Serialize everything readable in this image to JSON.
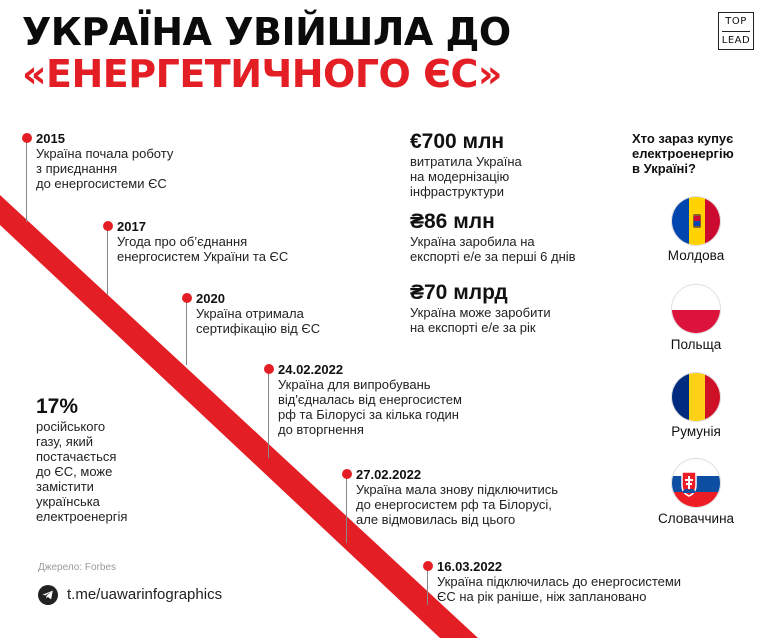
{
  "title": {
    "line1": "УКРАЇНА УВІЙШЛА ДО",
    "line2": "«ЕНЕРГЕТИЧНОГО ЄС»"
  },
  "logo": {
    "top": "TOP",
    "bottom": "LEAD"
  },
  "accent_color": "#e31e24",
  "timeline": [
    {
      "date": "2015",
      "text": "Україна почала роботу\nз приєднання\nдо енергосистеми ЄС"
    },
    {
      "date": "2017",
      "text": "Угода про об’єднання\nенергосистем України та ЄС"
    },
    {
      "date": "2020",
      "text": "Україна отримала\nсертифікацію від ЄС"
    },
    {
      "date": "24.02.2022",
      "text": "Україна для випробувань\nвід'єдналась від енергосистем\nрф та Білорусі за кілька годин\nдо вторгнення"
    },
    {
      "date": "27.02.2022",
      "text": "Україна мала знову підключитись\nдо енергосистем рф та Білорусі,\nале відмовилась від цього"
    },
    {
      "date": "16.03.2022",
      "text": "Україна підключилась до енергосистеми\nЄС на рік раніше, ніж заплановано"
    }
  ],
  "stats": [
    {
      "value": "€700 млн",
      "text": "витратила Україна\nна модернізацію\nінфраструктури"
    },
    {
      "value": "₴86 млн",
      "text": "Україна заробила на\nекспорті е/е за перші 6 днів"
    },
    {
      "value": "₴70 млрд",
      "text": "Україна може заробити\nна експорті е/е за рік"
    }
  ],
  "buyers": {
    "question": "Хто зараз купує\nелектроенергію\nв Україні?",
    "countries": [
      {
        "name": "Молдова",
        "flag": "moldova-flag-icon"
      },
      {
        "name": "Польща",
        "flag": "poland-flag-icon"
      },
      {
        "name": "Румунія",
        "flag": "romania-flag-icon"
      },
      {
        "name": "Словаччина",
        "flag": "slovakia-flag-icon"
      }
    ]
  },
  "gas_stat": {
    "value": "17%",
    "text": "російського\nгазу, який\nпостачається\nдо ЄС, може\nзамістити\nукраїнська\nелектроенергія"
  },
  "source": "Джерело: Forbes",
  "telegram": {
    "icon": "telegram-icon",
    "link": "t.me/uawarinfographics"
  }
}
